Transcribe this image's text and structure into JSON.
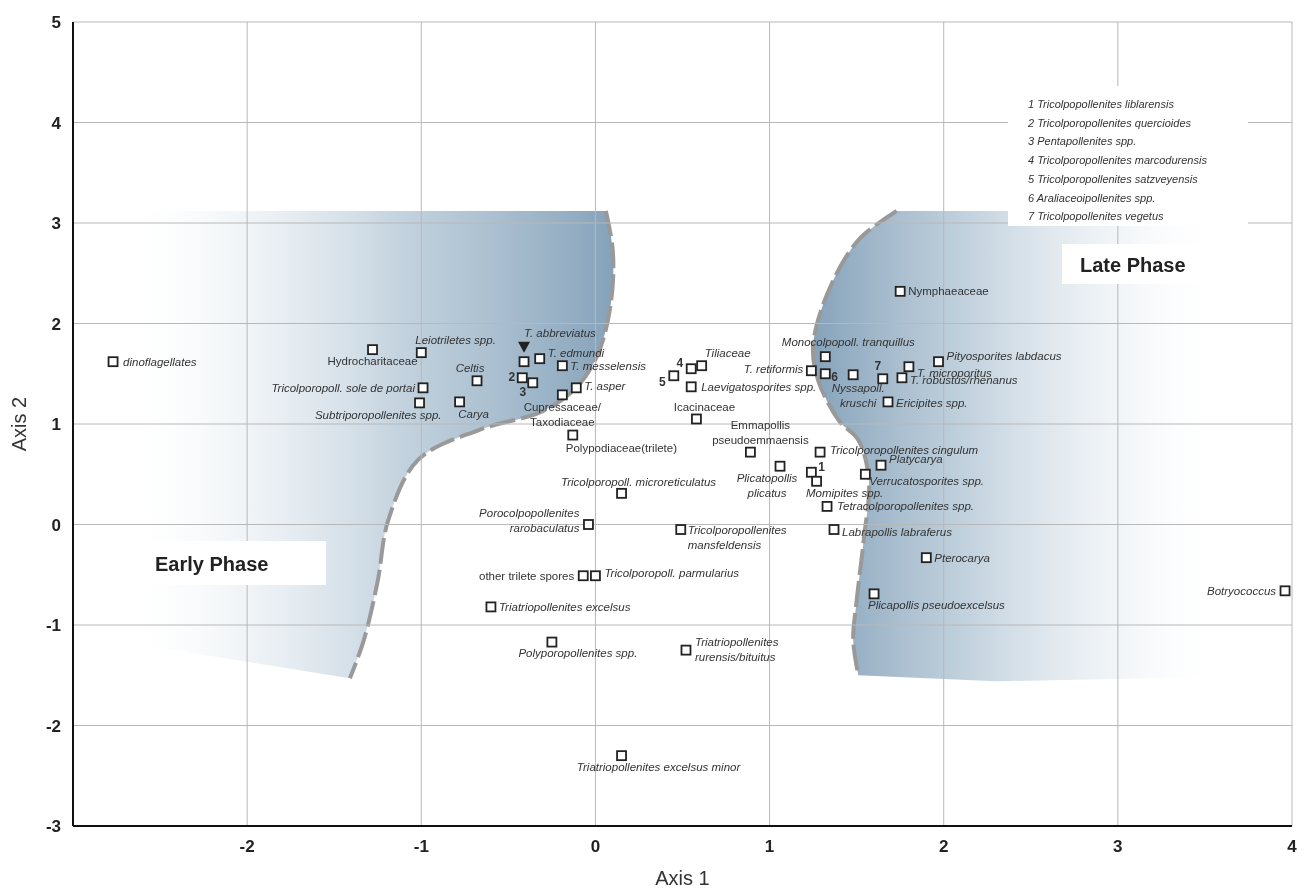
{
  "chart_data": {
    "type": "scatter",
    "xlabel": "Axis 1",
    "ylabel": "Axis 2",
    "xlim": [
      -3,
      4
    ],
    "xticks": [
      -2,
      -1,
      0,
      1,
      2,
      3,
      4
    ],
    "ylim": [
      -3,
      5
    ],
    "yticks": [
      -3,
      -2,
      -1,
      0,
      1,
      2,
      3,
      4,
      5
    ],
    "grid": true,
    "marker": "square",
    "color": "#222222",
    "x": [
      -2.77,
      -1.28,
      -1.0,
      -0.99,
      -1.01,
      -0.68,
      -0.78,
      -0.41,
      -0.32,
      -0.42,
      -0.36,
      -0.19,
      -0.11,
      -0.19,
      -0.13,
      0.15,
      -0.04,
      -0.07,
      0.0,
      -0.6,
      0.55,
      0.61,
      0.45,
      0.55,
      0.58,
      0.89,
      1.29,
      1.06,
      1.24,
      1.27,
      1.33,
      1.37,
      0.49,
      1.24,
      1.32,
      1.32,
      1.48,
      1.65,
      1.76,
      1.8,
      1.68,
      1.97,
      1.55,
      1.64,
      1.9,
      1.6,
      1.75,
      3.96,
      -0.25,
      0.52,
      0.15
    ],
    "values": [
      1.62,
      1.74,
      1.71,
      1.36,
      1.21,
      1.43,
      1.22,
      1.62,
      1.65,
      1.46,
      1.41,
      1.58,
      1.36,
      1.29,
      0.89,
      0.31,
      0.0,
      -0.51,
      -0.51,
      -0.82,
      1.55,
      1.58,
      1.48,
      1.37,
      1.05,
      0.72,
      0.72,
      0.58,
      0.52,
      0.43,
      0.18,
      -0.05,
      -0.05,
      1.53,
      1.67,
      1.5,
      1.49,
      1.45,
      1.46,
      1.57,
      1.22,
      1.62,
      0.5,
      0.59,
      -0.33,
      -0.69,
      2.32,
      -0.66,
      -1.17,
      -1.25,
      -2.3
    ],
    "annotations": [
      {
        "text": "dinoflagellates",
        "x": -2.77,
        "y": 1.62
      },
      {
        "text": "Hydrocharitaceae",
        "x": -1.28,
        "y": 1.74
      },
      {
        "text": "Leiotriletes spp.",
        "x": -1.0,
        "y": 1.71
      },
      {
        "text": "Tricolporopoll. sole de portai",
        "x": -0.99,
        "y": 1.36
      },
      {
        "text": "Subtriporopollenites spp.",
        "x": -1.01,
        "y": 1.21
      },
      {
        "text": "Celtis",
        "x": -0.68,
        "y": 1.43
      },
      {
        "text": "Carya",
        "x": -0.78,
        "y": 1.22
      },
      {
        "text": "T. abbreviatus",
        "x": -0.41,
        "y": 1.62
      },
      {
        "text": "T. edmundi",
        "x": -0.32,
        "y": 1.65
      },
      {
        "text": "2",
        "x": -0.42,
        "y": 1.46
      },
      {
        "text": "3",
        "x": -0.36,
        "y": 1.41
      },
      {
        "text": "T. messelensis",
        "x": -0.19,
        "y": 1.58
      },
      {
        "text": "T. asper",
        "x": -0.11,
        "y": 1.36
      },
      {
        "text": "Cupressaceae/\nTaxodiaceae",
        "x": -0.19,
        "y": 1.29
      },
      {
        "text": "Polypodiaceae(trilete)",
        "x": -0.13,
        "y": 0.89
      },
      {
        "text": "Tricolporopoll. microreticulatus",
        "x": 0.15,
        "y": 0.31
      },
      {
        "text": "Porocolpopollenites\nrarobaculatus",
        "x": -0.04,
        "y": 0.0
      },
      {
        "text": "other trilete spores",
        "x": -0.07,
        "y": -0.51
      },
      {
        "text": "Tricolporopoll. parmularius",
        "x": 0.0,
        "y": -0.51
      },
      {
        "text": "Triatriopollenites excelsus",
        "x": -0.6,
        "y": -0.82
      },
      {
        "text": "4",
        "x": 0.55,
        "y": 1.55
      },
      {
        "text": "Tiliaceae",
        "x": 0.61,
        "y": 1.58
      },
      {
        "text": "5",
        "x": 0.45,
        "y": 1.48
      },
      {
        "text": "Laevigatosporites spp.",
        "x": 0.55,
        "y": 1.37
      },
      {
        "text": "Icacinaceae",
        "x": 0.58,
        "y": 1.05
      },
      {
        "text": "Emmapollis\npseudoemmaensis",
        "x": 0.89,
        "y": 0.72
      },
      {
        "text": "Tricolporopollenites cingulum",
        "x": 1.29,
        "y": 0.72
      },
      {
        "text": "Plicatopollis\nplicatus",
        "x": 1.06,
        "y": 0.58
      },
      {
        "text": "1",
        "x": 1.24,
        "y": 0.52
      },
      {
        "text": "Momipites spp.",
        "x": 1.27,
        "y": 0.43
      },
      {
        "text": "Tetracolporopollenites spp.",
        "x": 1.33,
        "y": 0.18
      },
      {
        "text": "Labrapollis labraferus",
        "x": 1.37,
        "y": -0.05
      },
      {
        "text": "Tricolporopollenites\nmansfeldensis",
        "x": 0.49,
        "y": -0.05
      },
      {
        "text": "T. retiformis",
        "x": 1.24,
        "y": 1.53
      },
      {
        "text": "Monocolpopoll. tranquillus",
        "x": 1.32,
        "y": 1.67
      },
      {
        "text": "6",
        "x": 1.32,
        "y": 1.5
      },
      {
        "text": "Nyssapoll.\nkruschi",
        "x": 1.48,
        "y": 1.49
      },
      {
        "text": "7",
        "x": 1.65,
        "y": 1.45
      },
      {
        "text": "T. robustus/rhenanus",
        "x": 1.76,
        "y": 1.46
      },
      {
        "text": "T. microporitus",
        "x": 1.8,
        "y": 1.57
      },
      {
        "text": "Ericipites spp.",
        "x": 1.68,
        "y": 1.22
      },
      {
        "text": "Pityosporites labdacus",
        "x": 1.97,
        "y": 1.62
      },
      {
        "text": "Verrucatosporites spp.",
        "x": 1.55,
        "y": 0.5
      },
      {
        "text": "Platycarya",
        "x": 1.64,
        "y": 0.59
      },
      {
        "text": "Pterocarya",
        "x": 1.9,
        "y": -0.33
      },
      {
        "text": "Plicapollis pseudoexcelsus",
        "x": 1.6,
        "y": -0.69
      },
      {
        "text": "Nymphaeaceae",
        "x": 1.75,
        "y": 2.32
      },
      {
        "text": "Botryococcus",
        "x": 3.96,
        "y": -0.66
      },
      {
        "text": "Polyporopollenites spp.",
        "x": -0.25,
        "y": -1.17
      },
      {
        "text": "Triatriopollenites\nrurensis/bituitus",
        "x": 0.52,
        "y": -1.25
      },
      {
        "text": "Triatriopollenites excelsus minor",
        "x": 0.15,
        "y": -2.3
      },
      "1  Tricolpopollenites liblarensis",
      "2  Tricolporopollenites quercioides",
      "3  Pentapollenites spp.",
      "4  Tricolporopollenites marcodurensis",
      "5  Tricolporopollenites satzveyensis",
      "6  Araliaceoipollenites spp.",
      "7  Tricolpopollenites vegetus",
      "Early Phase",
      "Late Phase"
    ]
  }
}
